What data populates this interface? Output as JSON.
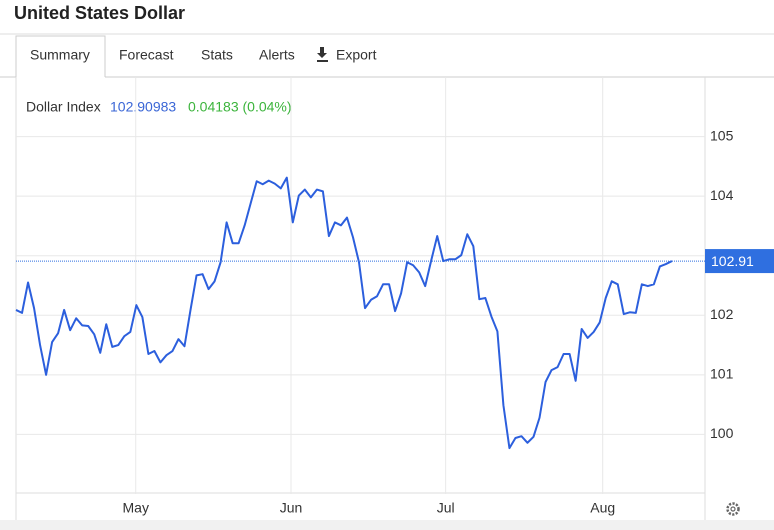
{
  "header": {
    "title": "United States Dollar"
  },
  "tabs": [
    "Summary",
    "Forecast",
    "Stats",
    "Alerts",
    "Export"
  ],
  "legend": {
    "name": "Dollar Index",
    "value": "102.90983",
    "change": "0.04183 (0.04%)"
  },
  "chart_data": {
    "type": "line",
    "series": [
      {
        "name": "Dollar Index",
        "color": "#2c5fdd",
        "values": [
          102.09,
          102.04,
          102.55,
          102.12,
          101.5,
          101.0,
          101.55,
          101.7,
          102.09,
          101.75,
          101.95,
          101.83,
          101.82,
          101.68,
          101.37,
          101.85,
          101.47,
          101.5,
          101.65,
          101.72,
          102.17,
          101.97,
          101.35,
          101.4,
          101.21,
          101.33,
          101.4,
          101.6,
          101.48,
          102.09,
          102.67,
          102.69,
          102.44,
          102.57,
          102.89,
          103.56,
          103.21,
          103.21,
          103.51,
          103.88,
          104.25,
          104.2,
          104.26,
          104.21,
          104.13,
          104.31,
          103.56,
          104.01,
          104.11,
          103.98,
          104.11,
          104.08,
          103.33,
          103.56,
          103.51,
          103.64,
          103.31,
          102.89,
          102.12,
          102.26,
          102.32,
          102.52,
          102.52,
          102.07,
          102.37,
          102.89,
          102.84,
          102.72,
          102.49,
          102.92,
          103.33,
          102.91,
          102.94,
          102.94,
          103.01,
          103.36,
          103.16,
          102.27,
          102.29,
          101.98,
          101.73,
          100.49,
          99.77,
          99.94,
          99.97,
          99.86,
          99.96,
          100.28,
          100.88,
          101.08,
          101.13,
          101.35,
          101.35,
          100.9,
          101.77,
          101.62,
          101.72,
          101.88,
          102.29,
          102.57,
          102.52,
          102.02,
          102.05,
          102.04,
          102.52,
          102.49,
          102.52,
          102.82,
          102.86,
          102.91
        ]
      }
    ],
    "xlim": [
      0,
      114.5
    ],
    "xticks": [
      {
        "value": 19.9,
        "label": "May"
      },
      {
        "value": 45.7,
        "label": "Jun"
      },
      {
        "value": 71.4,
        "label": "Jul"
      },
      {
        "value": 97.5,
        "label": "Aug"
      }
    ],
    "ylim": [
      99,
      106
    ],
    "yticks": [
      100,
      101,
      102,
      103,
      104,
      105
    ],
    "reference_line": {
      "value": 102.91,
      "label": "102.91",
      "color": "#2f6fe0"
    },
    "grid": true
  }
}
